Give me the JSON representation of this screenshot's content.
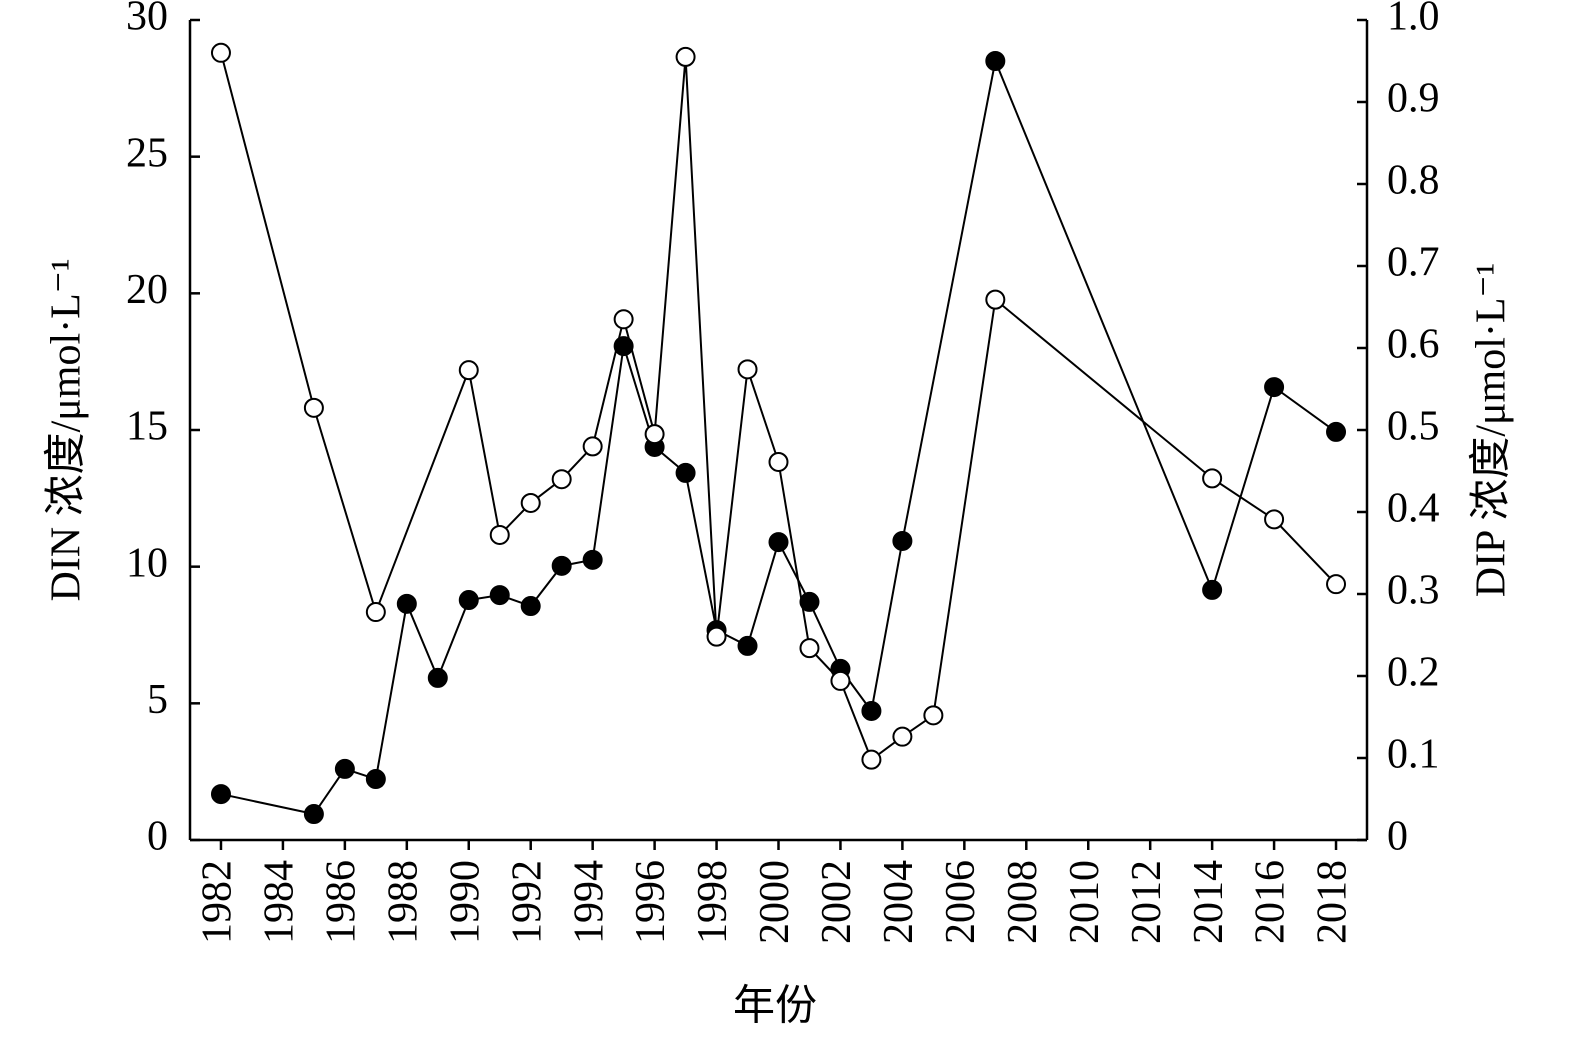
{
  "chart_data": {
    "type": "line",
    "xlabel": "年份",
    "ylabel": "DIN 浓度/μmol·L⁻¹",
    "y2label": "DIP 浓度/μmol·L⁻¹",
    "xlim": [
      1981,
      2019
    ],
    "xticks": [
      1982,
      1984,
      1986,
      1988,
      1990,
      1992,
      1994,
      1996,
      1998,
      2000,
      2002,
      2004,
      2006,
      2008,
      2010,
      2012,
      2014,
      2016,
      2018
    ],
    "ylim": [
      0,
      30
    ],
    "yticks": [
      0,
      5,
      10,
      15,
      20,
      25,
      30
    ],
    "y2lim": [
      0,
      1
    ],
    "y2ticks": [
      0,
      0.1,
      0.2,
      0.3,
      0.4,
      0.5,
      0.6,
      0.7,
      0.8,
      0.9,
      {
        "value": 1,
        "label": "1.0"
      }
    ],
    "series": [
      {
        "color": "#000000",
        "marker_fill": "#000000",
        "x": [
          1982,
          1985,
          1986,
          1987,
          1988,
          1989,
          1990,
          1991,
          1992,
          1993,
          1994,
          1995,
          1996,
          1997,
          1998,
          1999,
          2000,
          2001,
          2002,
          2003,
          2004,
          2007,
          2014,
          2016,
          2018
        ],
        "values": [
          1.68,
          0.95,
          2.6,
          2.23,
          8.64,
          5.93,
          8.78,
          8.96,
          8.56,
          10.03,
          10.25,
          18.07,
          14.38,
          13.43,
          7.68,
          7.1,
          10.9,
          8.71,
          6.26,
          4.72,
          10.94,
          28.5,
          9.15,
          16.57,
          14.93
        ]
      },
      {
        "color": "#000000",
        "marker_fill": "#ffffff",
        "axis": "y2",
        "x": [
          1982,
          1985,
          1987,
          1990,
          1991,
          1992,
          1993,
          1994,
          1995,
          1996,
          1997,
          1998,
          1999,
          2000,
          2001,
          2002,
          2003,
          2004,
          2005,
          2007,
          2014,
          2016,
          2018
        ],
        "values": [
          0.96,
          0.527,
          0.278,
          0.573,
          0.372,
          0.411,
          0.44,
          0.48,
          0.635,
          0.495,
          0.955,
          0.248,
          0.574,
          0.461,
          0.234,
          0.194,
          0.098,
          0.126,
          0.152,
          0.659,
          0.441,
          0.391,
          0.312
        ]
      }
    ]
  }
}
